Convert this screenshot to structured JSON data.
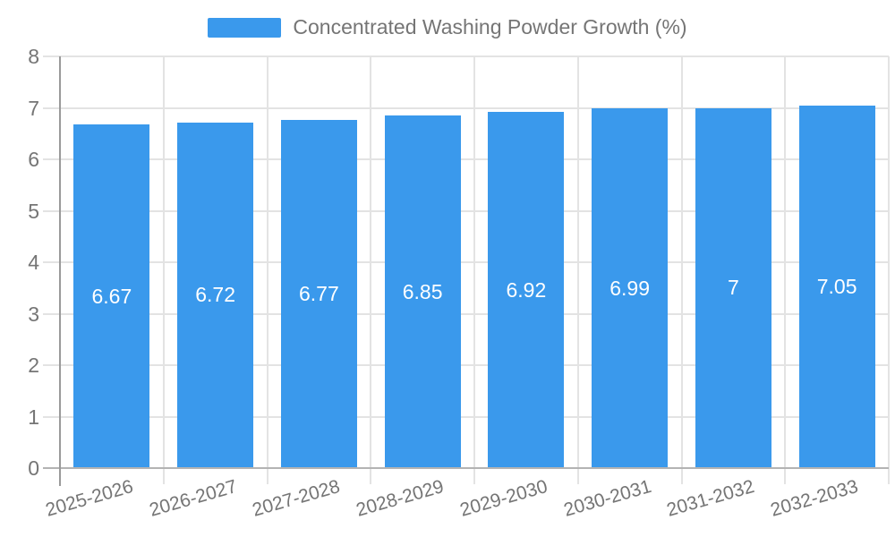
{
  "chart_data": {
    "type": "bar",
    "title": "",
    "legend": "Concentrated Washing Powder Growth (%)",
    "legend_position": "top",
    "categories": [
      "2025-2026",
      "2026-2027",
      "2027-2028",
      "2028-2029",
      "2029-2030",
      "2030-2031",
      "2031-2032",
      "2032-2033"
    ],
    "values": [
      6.67,
      6.72,
      6.77,
      6.85,
      6.92,
      6.99,
      7,
      7.05
    ],
    "value_labels": [
      "6.67",
      "6.72",
      "6.77",
      "6.85",
      "6.92",
      "6.99",
      "7",
      "7.05"
    ],
    "value_labels_position": "inside-center",
    "xlabel": "",
    "ylabel": "",
    "ylim": [
      0,
      8
    ],
    "yticks": [
      0,
      1,
      2,
      3,
      4,
      5,
      6,
      7,
      8
    ],
    "grid": true,
    "colors": {
      "bar": "#3A99EC",
      "axis_text": "#757575",
      "gridline": "#E3E3E3",
      "baseline": "#B3B3B3",
      "axis_line": "#9A9A9A",
      "bar_label": "#FFFFFF",
      "background": "#FFFFFF"
    }
  }
}
